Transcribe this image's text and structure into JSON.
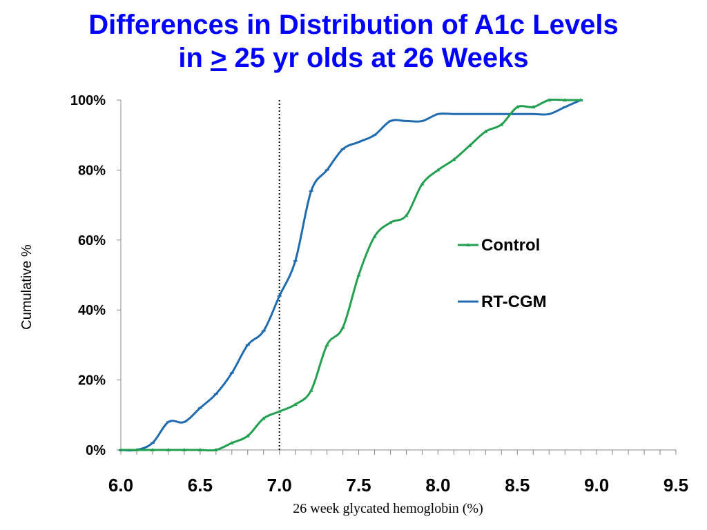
{
  "slide": {
    "title_line1": "Differences in Distribution of A1c Levels",
    "title_line2_prefix": "in ",
    "title_line2_symbol": ">",
    "title_line2_rest": " 25 yr olds at 26 Weeks"
  },
  "chart_data": {
    "type": "line",
    "title": "Differences in Distribution of A1c Levels in > 25 yr olds at 26 Weeks",
    "xlabel": "26 week glycated hemoglobin (%)",
    "ylabel": "Cumulative %",
    "xlim": [
      6.0,
      9.5
    ],
    "ylim": [
      0,
      100
    ],
    "x_ticks": [
      "6.0",
      "6.5",
      "7.0",
      "7.5",
      "8.0",
      "8.5",
      "9.0",
      "9.5"
    ],
    "y_ticks": [
      "0%",
      "20%",
      "40%",
      "60%",
      "80%",
      "100%"
    ],
    "reference_line_x": 7.0,
    "legend_position": "right",
    "grid": false,
    "series": [
      {
        "name": "Control",
        "color": "#22a050",
        "marker": "triangle",
        "x": [
          6.0,
          6.1,
          6.2,
          6.3,
          6.4,
          6.5,
          6.6,
          6.7,
          6.8,
          6.9,
          7.0,
          7.1,
          7.2,
          7.3,
          7.4,
          7.5,
          7.6,
          7.7,
          7.8,
          7.9,
          8.0,
          8.1,
          8.2,
          8.3,
          8.4,
          8.5,
          8.6,
          8.7,
          8.8,
          8.9
        ],
        "values": [
          0,
          0,
          0,
          0,
          0,
          0,
          0,
          2,
          4,
          9,
          11,
          13,
          17,
          30,
          35,
          50,
          61,
          65,
          67,
          76,
          80,
          83,
          87,
          91,
          93,
          98,
          98,
          100,
          100,
          100
        ]
      },
      {
        "name": "RT-CGM",
        "color": "#1f6bb0",
        "marker": "dash",
        "x": [
          6.0,
          6.1,
          6.2,
          6.3,
          6.4,
          6.5,
          6.6,
          6.7,
          6.8,
          6.9,
          7.0,
          7.1,
          7.2,
          7.3,
          7.4,
          7.5,
          7.6,
          7.7,
          7.8,
          7.9,
          8.0,
          8.1,
          8.2,
          8.3,
          8.4,
          8.5,
          8.6,
          8.7,
          8.8,
          8.9
        ],
        "values": [
          0,
          0,
          2,
          8,
          8,
          12,
          16,
          22,
          30,
          34,
          44,
          54,
          74,
          80,
          86,
          88,
          90,
          94,
          94,
          94,
          96,
          96,
          96,
          96,
          96,
          96,
          96,
          96,
          98,
          100
        ]
      }
    ]
  }
}
